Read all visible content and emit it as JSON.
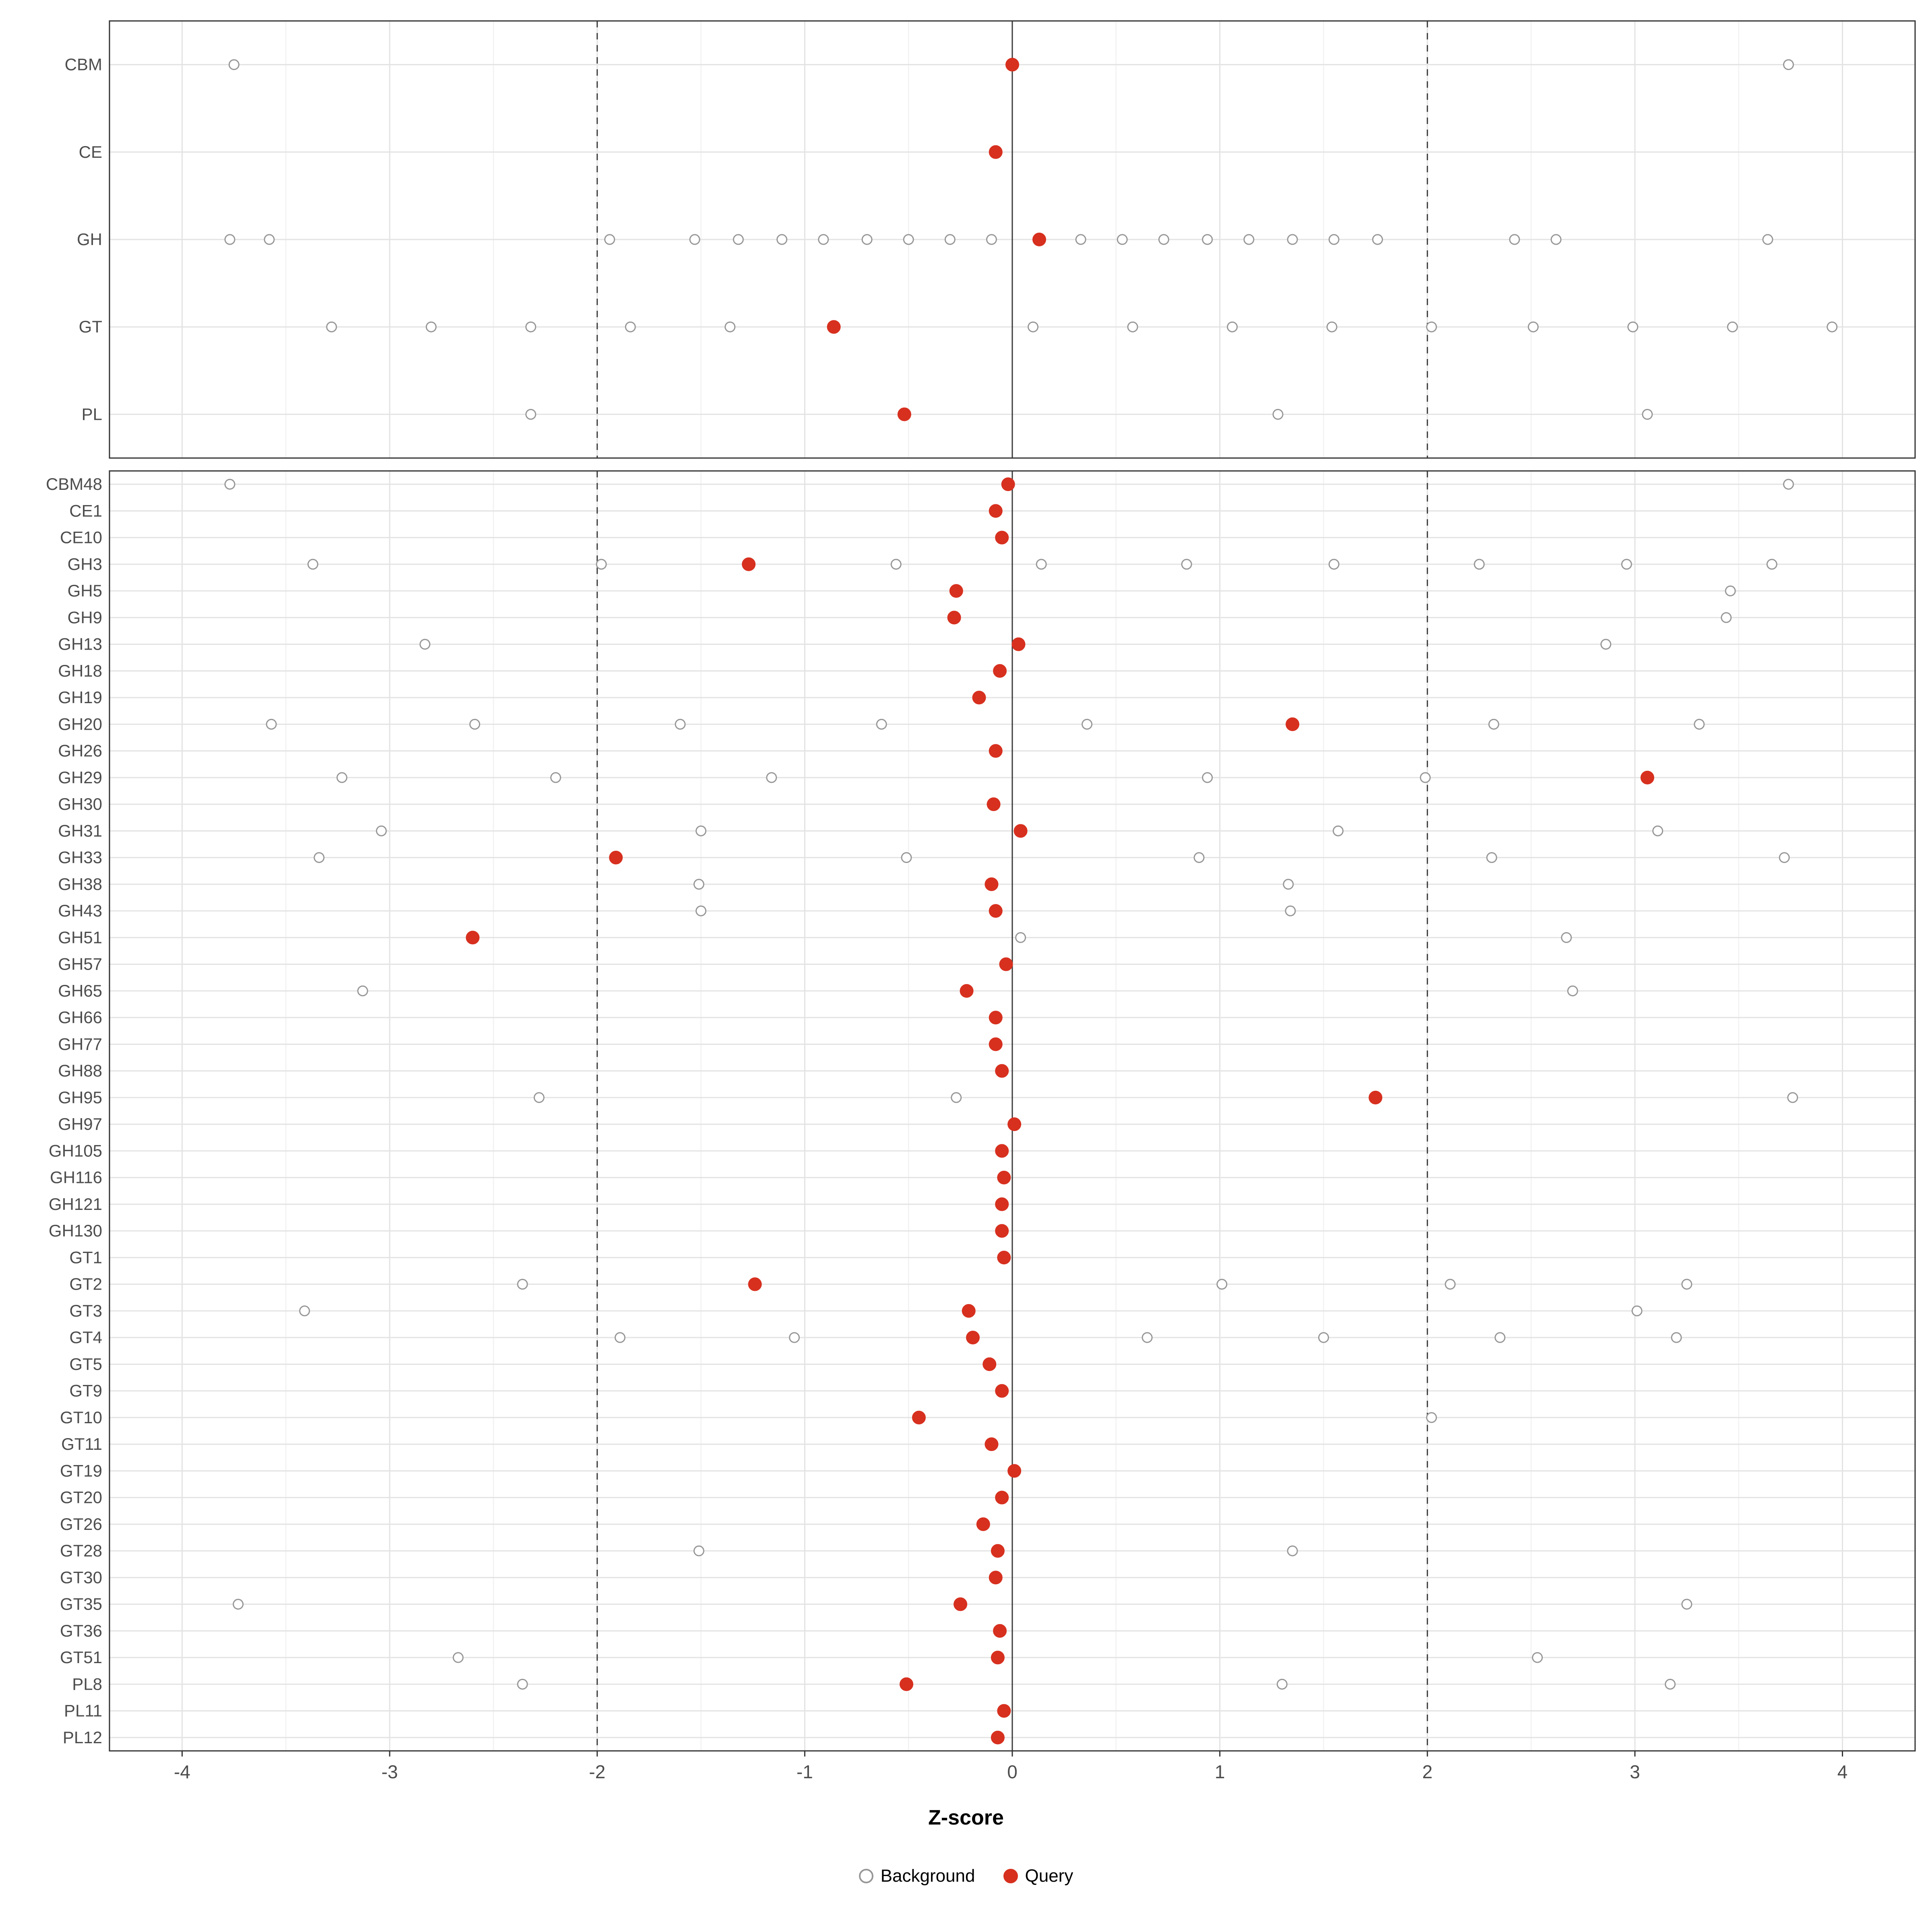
{
  "chart_data": {
    "type": "scatter",
    "title": "",
    "xlabel": "Z-score",
    "xlim": [
      -4.35,
      4.35
    ],
    "x_ticks": [
      -4,
      -3,
      -2,
      -1,
      0,
      1,
      2,
      3,
      4
    ],
    "reference_lines": {
      "solid": [
        0
      ],
      "dashed": [
        -2,
        2
      ]
    },
    "grid": true,
    "legend_position": "bottom",
    "legend": [
      {
        "label": "Background",
        "style": "open"
      },
      {
        "label": "Query",
        "style": "filled"
      }
    ],
    "colors": {
      "background_point": "#979797",
      "query_point": "#D7301F",
      "grid_major": "#E3E3E3",
      "grid_minor": "#F1F1F1",
      "panel_border": "#333333",
      "ref_line": "#3A3A3A",
      "axis_text": "#4D4D4D"
    },
    "panels": [
      {
        "name": "summary",
        "rows": [
          {
            "label": "CBM",
            "background": [
              -3.75,
              3.74
            ],
            "query": [
              0.0
            ]
          },
          {
            "label": "CE",
            "background": [],
            "query": [
              -0.08
            ]
          },
          {
            "label": "GH",
            "background": [
              -3.77,
              -3.58,
              -1.94,
              -1.53,
              -1.32,
              -1.11,
              -0.91,
              -0.7,
              -0.5,
              -0.3,
              -0.1,
              0.33,
              0.53,
              0.73,
              0.94,
              1.14,
              1.35,
              1.55,
              1.76,
              2.42,
              2.62,
              3.64
            ],
            "query": [
              0.13
            ]
          },
          {
            "label": "GT",
            "background": [
              -3.28,
              -2.8,
              -2.32,
              -1.84,
              -1.36,
              0.1,
              0.58,
              1.06,
              1.54,
              2.02,
              2.51,
              2.99,
              3.47,
              3.95
            ],
            "query": [
              -0.86
            ]
          },
          {
            "label": "PL",
            "background": [
              -2.32,
              1.28,
              3.06
            ],
            "query": [
              -0.52
            ]
          }
        ]
      },
      {
        "name": "families",
        "rows": [
          {
            "label": "CBM48",
            "background": [
              -3.77,
              3.74
            ],
            "query": [
              -0.02
            ]
          },
          {
            "label": "CE1",
            "background": [],
            "query": [
              -0.08
            ]
          },
          {
            "label": "CE10",
            "background": [],
            "query": [
              -0.05
            ]
          },
          {
            "label": "GH3",
            "background": [
              -3.37,
              -1.98,
              -0.56,
              0.14,
              0.84,
              1.55,
              2.25,
              2.96,
              3.66
            ],
            "query": [
              -1.27
            ]
          },
          {
            "label": "GH5",
            "background": [
              3.46
            ],
            "query": [
              -0.27
            ]
          },
          {
            "label": "GH9",
            "background": [
              3.44
            ],
            "query": [
              -0.28
            ]
          },
          {
            "label": "GH13",
            "background": [
              -2.83,
              2.86
            ],
            "query": [
              0.03
            ]
          },
          {
            "label": "GH18",
            "background": [],
            "query": [
              -0.06
            ]
          },
          {
            "label": "GH19",
            "background": [],
            "query": [
              -0.16
            ]
          },
          {
            "label": "GH20",
            "background": [
              -3.57,
              -2.59,
              -1.6,
              -0.63,
              0.36,
              2.32,
              3.31
            ],
            "query": [
              1.35
            ]
          },
          {
            "label": "GH26",
            "background": [],
            "query": [
              -0.08
            ]
          },
          {
            "label": "GH29",
            "background": [
              -3.23,
              -2.2,
              -1.16,
              0.94,
              1.99
            ],
            "query": [
              3.06
            ]
          },
          {
            "label": "GH30",
            "background": [],
            "query": [
              -0.09
            ]
          },
          {
            "label": "GH31",
            "background": [
              -3.04,
              -1.5,
              1.57,
              3.11
            ],
            "query": [
              0.04
            ]
          },
          {
            "label": "GH33",
            "background": [
              -3.34,
              -0.51,
              0.9,
              2.31,
              3.72
            ],
            "query": [
              -1.91
            ]
          },
          {
            "label": "GH38",
            "background": [
              -1.51,
              1.33
            ],
            "query": [
              -0.1
            ]
          },
          {
            "label": "GH43",
            "background": [
              -1.5,
              1.34
            ],
            "query": [
              -0.08
            ]
          },
          {
            "label": "GH51",
            "background": [
              0.04,
              2.67
            ],
            "query": [
              -2.6
            ]
          },
          {
            "label": "GH57",
            "background": [],
            "query": [
              -0.03
            ]
          },
          {
            "label": "GH65",
            "background": [
              -3.13,
              2.7
            ],
            "query": [
              -0.22
            ]
          },
          {
            "label": "GH66",
            "background": [],
            "query": [
              -0.08
            ]
          },
          {
            "label": "GH77",
            "background": [],
            "query": [
              -0.08
            ]
          },
          {
            "label": "GH88",
            "background": [],
            "query": [
              -0.05
            ]
          },
          {
            "label": "GH95",
            "background": [
              -2.28,
              -0.27,
              3.76
            ],
            "query": [
              1.75
            ]
          },
          {
            "label": "GH97",
            "background": [],
            "query": [
              0.01
            ]
          },
          {
            "label": "GH105",
            "background": [],
            "query": [
              -0.05
            ]
          },
          {
            "label": "GH116",
            "background": [],
            "query": [
              -0.04
            ]
          },
          {
            "label": "GH121",
            "background": [],
            "query": [
              -0.05
            ]
          },
          {
            "label": "GH130",
            "background": [],
            "query": [
              -0.05
            ]
          },
          {
            "label": "GT1",
            "background": [],
            "query": [
              -0.04
            ]
          },
          {
            "label": "GT2",
            "background": [
              -2.36,
              1.01,
              2.11,
              3.25
            ],
            "query": [
              -1.24
            ]
          },
          {
            "label": "GT3",
            "background": [
              -3.41,
              3.01
            ],
            "query": [
              -0.21
            ]
          },
          {
            "label": "GT4",
            "background": [
              -1.89,
              -1.05,
              0.65,
              1.5,
              2.35,
              3.2
            ],
            "query": [
              -0.19
            ]
          },
          {
            "label": "GT5",
            "background": [],
            "query": [
              -0.11
            ]
          },
          {
            "label": "GT9",
            "background": [],
            "query": [
              -0.05
            ]
          },
          {
            "label": "GT10",
            "background": [
              2.02
            ],
            "query": [
              -0.45
            ]
          },
          {
            "label": "GT11",
            "background": [],
            "query": [
              -0.1
            ]
          },
          {
            "label": "GT19",
            "background": [],
            "query": [
              0.01
            ]
          },
          {
            "label": "GT20",
            "background": [],
            "query": [
              -0.05
            ]
          },
          {
            "label": "GT26",
            "background": [],
            "query": [
              -0.14
            ]
          },
          {
            "label": "GT28",
            "background": [
              -1.51,
              1.35
            ],
            "query": [
              -0.07
            ]
          },
          {
            "label": "GT30",
            "background": [],
            "query": [
              -0.08
            ]
          },
          {
            "label": "GT35",
            "background": [
              -3.73,
              3.25
            ],
            "query": [
              -0.25
            ]
          },
          {
            "label": "GT36",
            "background": [],
            "query": [
              -0.06
            ]
          },
          {
            "label": "GT51",
            "background": [
              -2.67,
              2.53
            ],
            "query": [
              -0.07
            ]
          },
          {
            "label": "PL8",
            "background": [
              -2.36,
              1.3,
              3.17
            ],
            "query": [
              -0.51
            ]
          },
          {
            "label": "PL11",
            "background": [],
            "query": [
              -0.04
            ]
          },
          {
            "label": "PL12",
            "background": [],
            "query": [
              -0.07
            ]
          }
        ]
      }
    ]
  }
}
